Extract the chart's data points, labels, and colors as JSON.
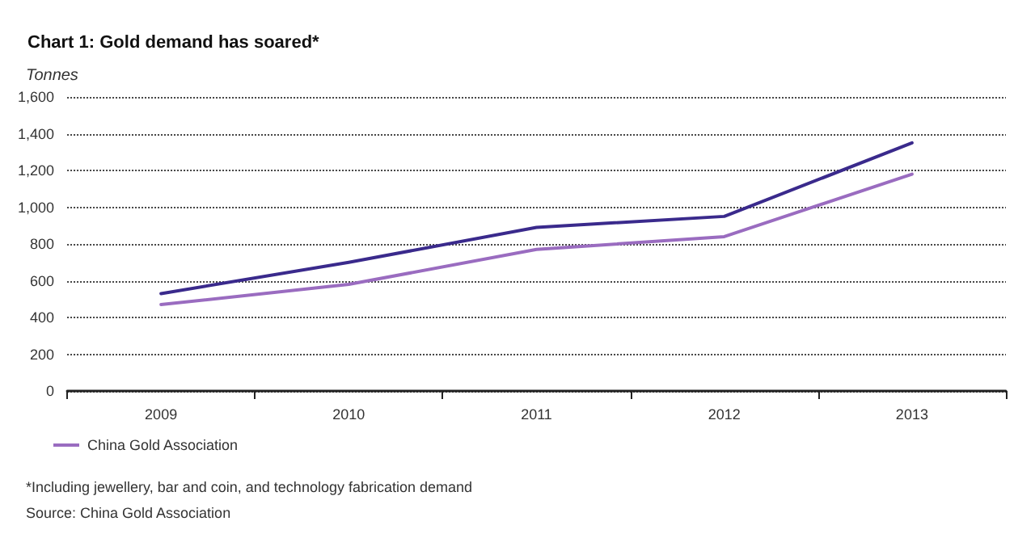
{
  "chart_data": {
    "type": "line",
    "title": "Chart 1: Gold demand has soared*",
    "ylabel": "Tonnes",
    "categories": [
      "2009",
      "2010",
      "2011",
      "2012",
      "2013"
    ],
    "series": [
      {
        "color": "#3a2a8c",
        "values": [
          530,
          700,
          890,
          950,
          1350
        ]
      },
      {
        "name": "China Gold Association",
        "color": "#9a6cc0",
        "values": [
          470,
          580,
          770,
          840,
          1180
        ]
      }
    ],
    "ylim": [
      0,
      1600
    ],
    "yticks": [
      0,
      200,
      400,
      600,
      800,
      {
        "value": 1000,
        "label": "1,000"
      },
      {
        "value": 1200,
        "label": "1,200"
      },
      {
        "value": 1400,
        "label": "1,400"
      },
      {
        "value": 1600,
        "label": "1,600"
      }
    ],
    "grid": "y",
    "legend": "bottom left",
    "line_style": "solid",
    "marker": "none",
    "annotations": [
      "*Including jewellery, bar and coin, and technology fabrication demand",
      "Source: China Gold Association"
    ]
  }
}
